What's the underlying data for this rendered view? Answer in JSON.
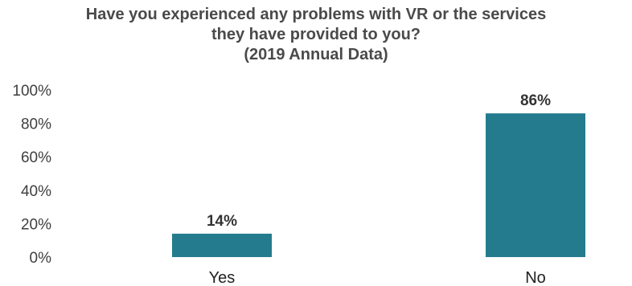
{
  "chart_data": {
    "type": "bar",
    "title_lines": [
      "Have you experienced any problems with VR or the services",
      "they have provided to you?",
      "(2019 Annual Data)"
    ],
    "categories": [
      "Yes",
      "No"
    ],
    "values": [
      14,
      86
    ],
    "data_labels": [
      "14%",
      "86%"
    ],
    "y_ticks": [
      "100%",
      "80%",
      "60%",
      "40%",
      "20%",
      "0%"
    ],
    "ylim": [
      0,
      100
    ],
    "xlabel": "",
    "ylabel": "",
    "grid": false,
    "legend": "none",
    "bar_color": "#247b8e"
  }
}
